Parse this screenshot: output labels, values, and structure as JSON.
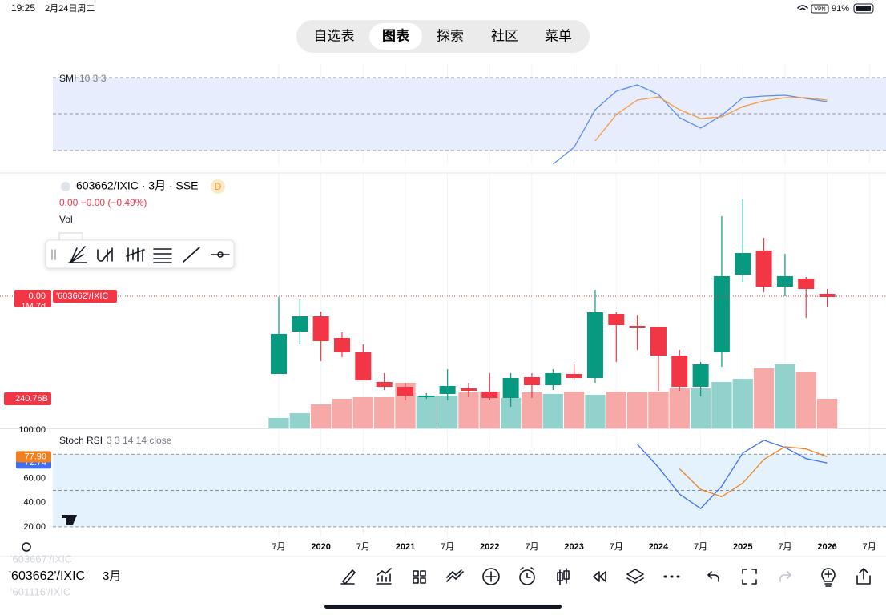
{
  "status_bar": {
    "time": "19:25",
    "date": "2月24日周二",
    "vpn": "VPN",
    "battery": "91%"
  },
  "tabs": [
    "自选表",
    "图表",
    "探索",
    "社区",
    "菜单"
  ],
  "active_tab": 1,
  "smi": {
    "title": "SMI",
    "params": "10 3 3",
    "ylim": [
      -28,
      108
    ],
    "series": [
      {
        "color": "#5b8def",
        "values": [
          null,
          null,
          null,
          null,
          null,
          null,
          null,
          null,
          null,
          null,
          null,
          null,
          null,
          -17,
          4,
          51,
          74,
          82,
          70,
          41,
          28,
          44,
          66,
          68,
          69,
          65,
          61
        ]
      },
      {
        "color": "#f39c3d",
        "values": [
          null,
          null,
          null,
          null,
          null,
          null,
          null,
          null,
          null,
          null,
          null,
          null,
          null,
          null,
          null,
          12,
          45,
          63,
          67,
          51,
          40,
          42,
          55,
          62,
          66,
          66,
          63
        ]
      }
    ]
  },
  "main": {
    "symbol": "603662/IXIC · 3月 · SSE",
    "badge": "D",
    "change": "0.00  −0.00 (−0.49%)",
    "vol_label": "Vol",
    "ylim": [
      0,
      318
    ],
    "up_color": "#089981",
    "down_color": "#f23645",
    "open": [
      68,
      121,
      140,
      113,
      95,
      58,
      52,
      39,
      43,
      50,
      46,
      38,
      64,
      54,
      68,
      63,
      143,
      128,
      127,
      91,
      52,
      95,
      192,
      222,
      177,
      187,
      168
    ],
    "high": [
      164,
      161,
      146,
      120,
      105,
      69,
      57,
      44,
      74,
      57,
      69,
      69,
      69,
      74,
      80,
      173,
      145,
      142,
      127,
      98,
      83,
      265,
      286,
      238,
      218,
      189,
      174
    ],
    "low": [
      68,
      105,
      84,
      89,
      60,
      48,
      35,
      37,
      35,
      39,
      35,
      27,
      38,
      48,
      61,
      57,
      83,
      98,
      47,
      47,
      40,
      77,
      183,
      170,
      165,
      138,
      151
    ],
    "close": [
      118,
      140,
      109,
      95,
      60,
      52,
      41,
      41,
      53,
      47,
      38,
      63,
      54,
      69,
      63,
      145,
      129,
      126,
      91,
      52,
      80,
      190,
      219,
      177,
      190,
      174,
      164
    ],
    "price_line": 165,
    "price_label": "0.00",
    "countdown": "1M 7d",
    "symbol_tag": "'603662'/IXIC",
    "volume": {
      "ylim": [
        0,
        2069
      ],
      "up_color": "#92d2cc",
      "down_color": "#f7a9a7",
      "values": [
        85,
        124,
        195,
        241,
        254,
        254,
        371,
        267,
        267,
        293,
        293,
        247,
        293,
        280,
        299,
        273,
        299,
        293,
        299,
        325,
        325,
        377,
        403,
        488,
        521,
        462,
        240.76
      ],
      "last_label": "240.76B"
    }
  },
  "rsi": {
    "title": "Stoch RSI",
    "params": "3 3 14 14 close",
    "ylim": [
      10,
      100
    ],
    "yticks": [
      {
        "value": 20,
        "label": "20.00"
      },
      {
        "value": 40,
        "label": "40.00"
      },
      {
        "value": 60,
        "label": "60.00"
      },
      {
        "value": 100,
        "label": "100.00"
      }
    ],
    "bands": [
      20,
      50,
      80
    ],
    "series": [
      {
        "color": "#3d6ef5",
        "values": [
          null,
          null,
          null,
          null,
          null,
          null,
          null,
          null,
          null,
          null,
          null,
          null,
          null,
          null,
          null,
          null,
          null,
          88.2,
          69.2,
          46.9,
          35.1,
          53.4,
          81.0,
          91.5,
          85.6,
          76.4,
          72.74
        ],
        "last_label": "72.74"
      },
      {
        "color": "#f3801f",
        "values": [
          null,
          null,
          null,
          null,
          null,
          null,
          null,
          null,
          null,
          null,
          null,
          null,
          null,
          null,
          null,
          null,
          null,
          null,
          null,
          67.9,
          50.8,
          44.9,
          56.1,
          75.7,
          86.2,
          84.3,
          77.9
        ],
        "last_label": "77.90"
      }
    ]
  },
  "x_labels": [
    "7月",
    "2020",
    "7月",
    "2021",
    "7月",
    "2022",
    "7月",
    "2023",
    "7月",
    "2024",
    "7月",
    "2025",
    "7月",
    "2026",
    "7月"
  ],
  "bottom_bar": {
    "symbol": "'603662'/IXIC",
    "interval": "3月",
    "prev_symbol": "'603667'/IXIC",
    "next_symbol": "'601116'/IXIC"
  }
}
